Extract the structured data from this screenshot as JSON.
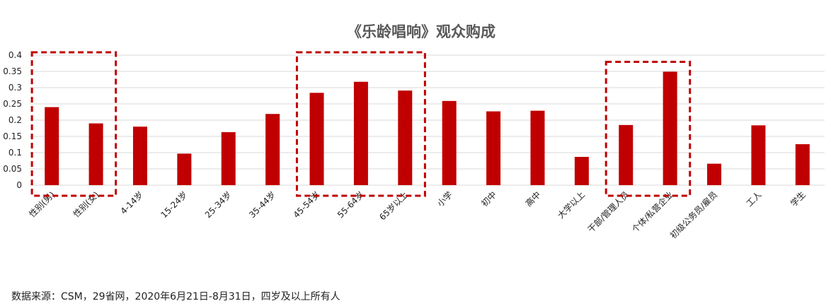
{
  "chart_data": {
    "type": "bar",
    "title": "《乐龄唱响》观众购成",
    "categories": [
      "性别(男)",
      "性别(女)",
      "4-14岁",
      "15-24岁",
      "25-34岁",
      "35-44岁",
      "45-54岁",
      "55-64岁",
      "65岁以上",
      "小学",
      "初中",
      "高中",
      "大学以上",
      "干部/管理人员",
      "个体/私营企业",
      "初级公务员/雇员",
      "工人",
      "学生"
    ],
    "values": [
      0.24,
      0.19,
      0.18,
      0.097,
      0.163,
      0.219,
      0.284,
      0.318,
      0.291,
      0.259,
      0.227,
      0.229,
      0.087,
      0.185,
      0.349,
      0.066,
      0.184,
      0.126
    ],
    "yticks": [
      "0",
      "0.05",
      "0.1",
      "0.15",
      "0.2",
      "0.25",
      "0.3",
      "0.35",
      "0.4"
    ],
    "ylim": [
      0,
      0.4
    ],
    "xlabel": "",
    "ylabel": "",
    "grid": true,
    "legend": "none",
    "bar_color": "#C00000",
    "highlight_color": "#C00000",
    "highlight_groups": [
      [
        "性别(男)",
        "性别(女)"
      ],
      [
        "45-54岁",
        "55-64岁",
        "65岁以上"
      ],
      [
        "干部/管理人员",
        "个体/私营企业"
      ]
    ]
  },
  "source_note": "数据来源：CSM，29省网，2020年6月21日-8月31日，四岁及以上所有人"
}
